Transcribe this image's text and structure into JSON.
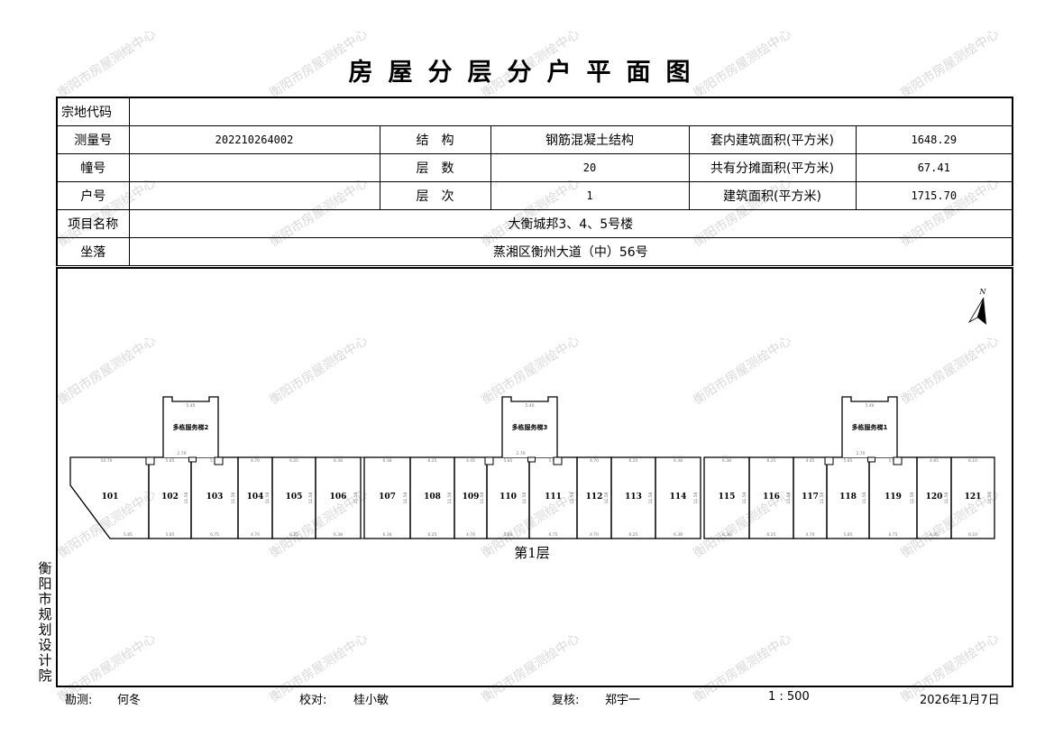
{
  "title": "房屋分层分户平面图",
  "watermark": "衡阳市房屋测绘中心",
  "info": {
    "parcel_code_label": "宗地代码",
    "parcel_code": "",
    "survey_no_label": "测量号",
    "survey_no": "202210264002",
    "structure_label": "结　构",
    "structure": "钢筋混凝土结构",
    "inner_area_label": "套内建筑面积(平方米)",
    "inner_area": "1648.29",
    "building_no_label": "幢号",
    "building_no": "",
    "floors_label": "层　数",
    "floors": "20",
    "shared_area_label": "共有分摊面积(平方米)",
    "shared_area": "67.41",
    "unit_no_label": "户号",
    "unit_no": "",
    "floor_label": "层　次",
    "floor": "1",
    "building_area_label": "建筑面积(平方米)",
    "building_area": "1715.70",
    "project_label": "项目名称",
    "project": "大衡城邦3、4、5号楼",
    "location_label": "坐落",
    "location": "蒸湘区衡州大道（中）56号"
  },
  "plan": {
    "floor_caption": "第1层",
    "north": "N",
    "units": [
      {
        "label": "101",
        "top": "10.70",
        "bottom": "5.85"
      },
      {
        "label": "102",
        "top": "5.85",
        "bottom": "5.85"
      },
      {
        "label": "103",
        "top": "5.90",
        "bottom": "6.75"
      },
      {
        "label": "104",
        "top": "4.70",
        "bottom": "4.70"
      },
      {
        "label": "105",
        "top": "6.25",
        "bottom": "6.25"
      },
      {
        "label": "106",
        "top": "6.38",
        "bottom": "6.38"
      },
      {
        "label": "107",
        "top": "6.38",
        "bottom": "6.38"
      },
      {
        "label": "108",
        "top": "6.25",
        "bottom": "6.25"
      },
      {
        "label": "109",
        "top": "4.45",
        "bottom": "4.70"
      },
      {
        "label": "110",
        "top": "5.85",
        "bottom": "5.85"
      },
      {
        "label": "111",
        "top": "5.90",
        "bottom": "6.75"
      },
      {
        "label": "112",
        "top": "4.70",
        "bottom": "4.70"
      },
      {
        "label": "113",
        "top": "6.25",
        "bottom": "6.25"
      },
      {
        "label": "114",
        "top": "6.38",
        "bottom": "6.38"
      },
      {
        "label": "115",
        "top": "6.38",
        "bottom": "6.38"
      },
      {
        "label": "116",
        "top": "6.25",
        "bottom": "6.25"
      },
      {
        "label": "117",
        "top": "4.45",
        "bottom": "4.70"
      },
      {
        "label": "118",
        "top": "5.85",
        "bottom": "5.85"
      },
      {
        "label": "119",
        "top": "5.90",
        "bottom": "6.75"
      },
      {
        "label": "120",
        "top": "4.85",
        "bottom": "4.85"
      },
      {
        "label": "121",
        "top": "6.10",
        "bottom": "6.10"
      }
    ],
    "depth_dim": "11.58",
    "stairs": [
      {
        "label": "多栋服务梯2",
        "top": "5.40",
        "bottom": "2.70"
      },
      {
        "label": "多栋服务梯3",
        "top": "5.40",
        "bottom": "2.70"
      },
      {
        "label": "多栋服务梯1",
        "top": "5.40",
        "bottom": "2.70"
      }
    ]
  },
  "side_label": "衡阳市规划设计院",
  "footer": {
    "surveyor_label": "勘测:",
    "surveyor": "何冬",
    "checker_label": "校对:",
    "checker": "桂小敏",
    "reviewer_label": "复核:",
    "reviewer": "郑宇一",
    "scale": "1 : 500",
    "date": "2026年1月7日"
  }
}
